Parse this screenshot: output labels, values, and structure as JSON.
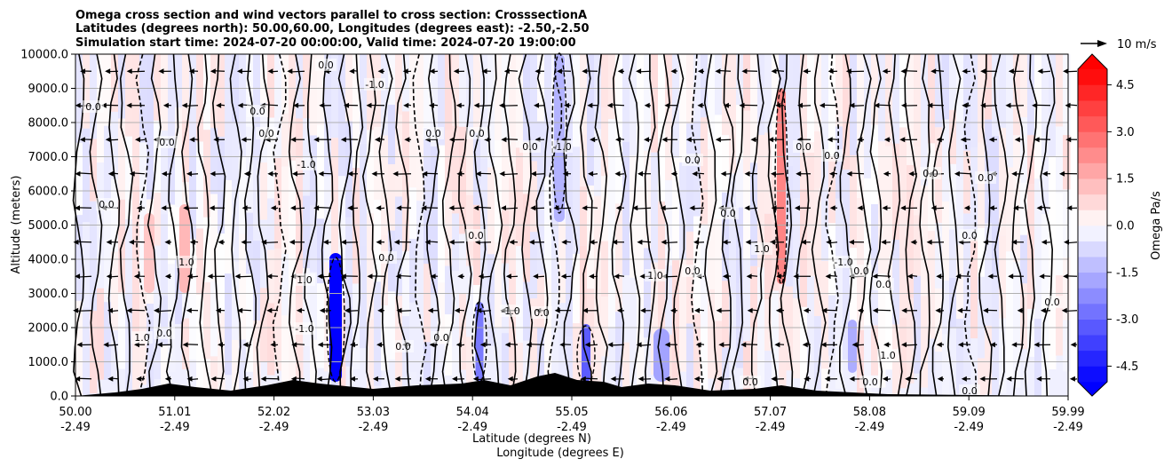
{
  "chart_data": {
    "type": "heatmap",
    "title_lines": [
      "Omega cross section and wind vectors parallel to cross section: CrosssectionA",
      "Latitudes (degrees north): 50.00,60.00, Longitudes (degrees east): -2.50,-2.50",
      "Simulation start time: 2024-07-20 00:00:00, Valid time: 2024-07-20 19:00:00"
    ],
    "ylabel": "Altitude (meters)",
    "xlabel_lines": [
      "Latitude (degrees N)",
      "Longitude (degrees E)"
    ],
    "ylim": [
      0,
      10000
    ],
    "y_ticks": [
      "0.0",
      "1000.0",
      "2000.0",
      "3000.0",
      "4000.0",
      "5000.0",
      "6000.0",
      "7000.0",
      "8000.0",
      "9000.0",
      "10000.0"
    ],
    "x_ticks": [
      {
        "lat": "50.00",
        "lon": "-2.49"
      },
      {
        "lat": "51.01",
        "lon": "-2.49"
      },
      {
        "lat": "52.02",
        "lon": "-2.49"
      },
      {
        "lat": "53.03",
        "lon": "-2.49"
      },
      {
        "lat": "54.04",
        "lon": "-2.49"
      },
      {
        "lat": "55.05",
        "lon": "-2.49"
      },
      {
        "lat": "56.06",
        "lon": "-2.49"
      },
      {
        "lat": "57.07",
        "lon": "-2.49"
      },
      {
        "lat": "58.08",
        "lon": "-2.49"
      },
      {
        "lat": "59.09",
        "lon": "-2.49"
      },
      {
        "lat": "59.99",
        "lon": "-2.49"
      }
    ],
    "colorbar": {
      "label": "Omega Pa/s",
      "range": [
        -5.0,
        5.0
      ],
      "ticks": [
        "-4.5",
        "-3.0",
        "-1.5",
        "0.0",
        "1.5",
        "3.0",
        "4.5"
      ],
      "colormap": "bwr"
    },
    "quiver_key": "10 m/s",
    "contour_labels": [
      "0.0",
      "-1.0",
      "1.0"
    ],
    "colors": {
      "positive": "#ff0000",
      "negative": "#0000ff",
      "neutral": "#ffffff",
      "terrain": "#000000"
    }
  }
}
